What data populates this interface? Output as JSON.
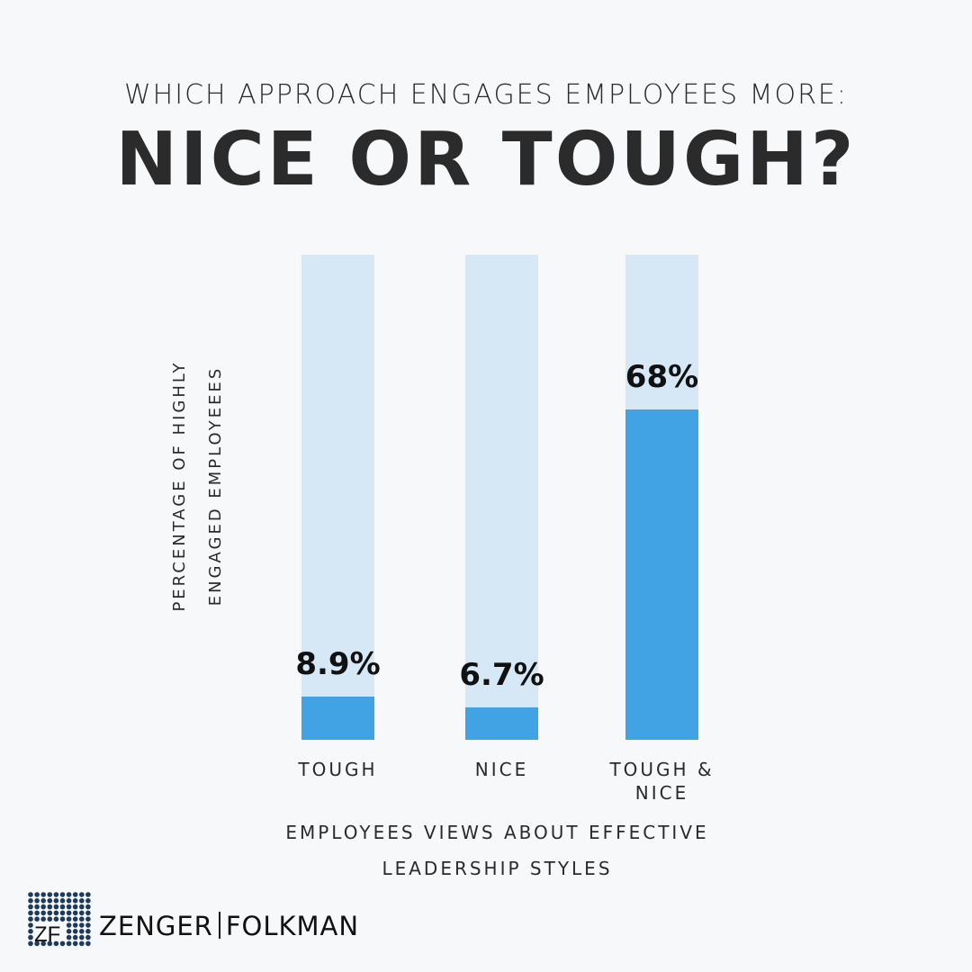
{
  "chart_data": {
    "type": "bar",
    "subtitle": "WHICH APPROACH ENGAGES EMPLOYEES MORE:",
    "title": "NICE OR TOUGH?",
    "ylabel_lines": [
      "PERCENTAGE OF HIGHLY",
      "ENGAGED EMPLOYEEES"
    ],
    "xlabel_lines": [
      "EMPLOYEES VIEWS ABOUT EFFECTIVE",
      "LEADERSHIP STYLES"
    ],
    "categories": [
      "TOUGH",
      "NICE",
      "TOUGH & NICE"
    ],
    "values": [
      8.9,
      6.7,
      68
    ],
    "data_labels": [
      "8.9%",
      "6.7%",
      "68%"
    ],
    "ylim": [
      0,
      100
    ],
    "grid": false,
    "colors": {
      "fill": "#42a3e4",
      "track": "#d6e8f6"
    }
  },
  "logo": {
    "monogram": "ZF",
    "name_left": "ZENGER",
    "name_right": "FOLKMAN",
    "dot_color": "#1f3b5c"
  }
}
